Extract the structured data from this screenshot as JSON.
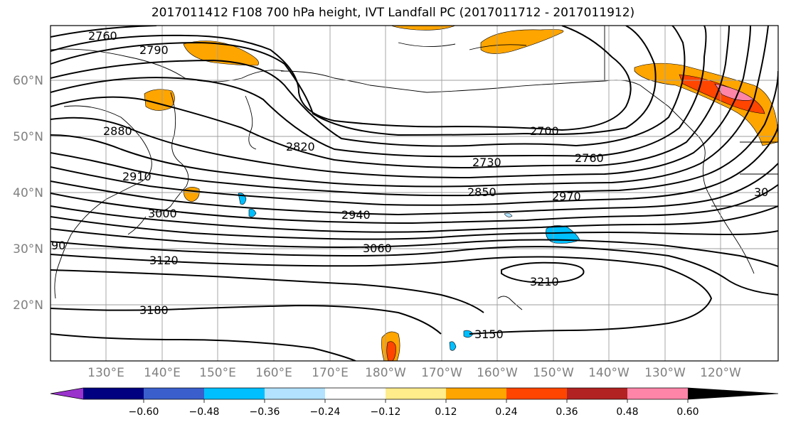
{
  "title": "2017011412 F108 700 hPa height, IVT Landfall PC (2017011712 - 2017011912)",
  "map": {
    "lat_labels": [
      "60°N",
      "50°N",
      "40°N",
      "30°N",
      "20°N"
    ],
    "lon_labels": [
      "130°E",
      "140°E",
      "150°E",
      "160°E",
      "170°E",
      "180°W",
      "170°W",
      "160°W",
      "150°W",
      "140°W",
      "130°W",
      "120°W"
    ],
    "contour_labels": [
      "2760",
      "2790",
      "2880",
      "2910",
      "3000",
      "90",
      "3120",
      "3180",
      "2820",
      "2940",
      "3060",
      "2700",
      "2730",
      "2760",
      "2850",
      "2970",
      "3210",
      "3150",
      "30"
    ]
  },
  "colorbar": {
    "tick_labels": [
      "−0.60",
      "−0.48",
      "−0.36",
      "−0.24",
      "−0.12",
      "0.12",
      "0.24",
      "0.36",
      "0.48",
      "0.60"
    ],
    "colors": [
      "#9933cc",
      "#000080",
      "#3a5fcd",
      "#00bfff",
      "#b2e2ff",
      "#ffffff",
      "#ffec8b",
      "#ffa500",
      "#ff4500",
      "#b22222",
      "#ff85a8"
    ]
  }
}
